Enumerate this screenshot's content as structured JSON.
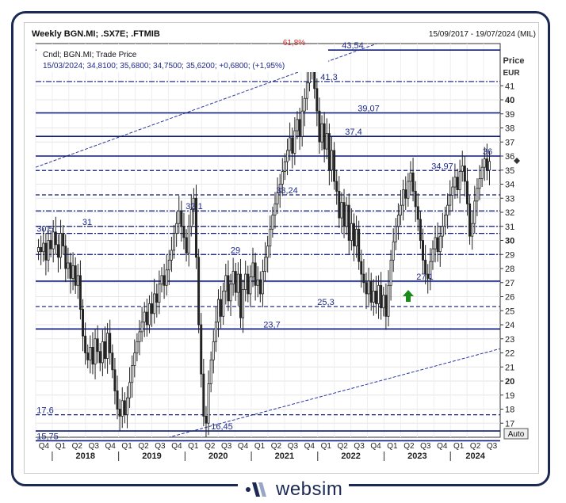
{
  "header": {
    "title": "Weekly BGN.MI; .SX7E; .FTMIB",
    "date_range": "15/09/2017 - 19/07/2024 (MIL)"
  },
  "info": {
    "line1": "Cndl; BGN.MI; Trade Price",
    "line2": "15/03/2024; 34,8100; 35,6800; 34,7500; 35,6200; +0,6800; (+1,95%)"
  },
  "axis": {
    "price_label": "Price",
    "currency_label": "EUR",
    "auto_label": "Auto"
  },
  "brand": {
    "name": "websim"
  },
  "colors": {
    "level_line": "#0c1a7a",
    "candle": "#222222",
    "arrow": "#1a8a1a",
    "trend_line": "#2a3aa0"
  },
  "chart_data": {
    "type": "candlestick",
    "ylim": [
      16,
      44
    ],
    "y_ticks": [
      17,
      18,
      19,
      20,
      21,
      22,
      23,
      24,
      25,
      26,
      27,
      28,
      29,
      30,
      31,
      32,
      33,
      34,
      35,
      36,
      37,
      38,
      39,
      40,
      41
    ],
    "y_bold_ticks": [
      20,
      30,
      40
    ],
    "x_quarter_labels": [
      "Q4",
      "Q1",
      "Q2",
      "Q3",
      "Q4",
      "Q1",
      "Q2",
      "Q3",
      "Q4",
      "Q1",
      "Q2",
      "Q3",
      "Q4",
      "Q1",
      "Q2",
      "Q3",
      "Q4",
      "Q1",
      "Q2",
      "Q3",
      "Q4",
      "Q1",
      "Q2",
      "Q3",
      "Q4",
      "Q1",
      "Q2",
      "Q3"
    ],
    "x_years": [
      "2018",
      "2019",
      "2020",
      "2021",
      "2022",
      "2023",
      "2024"
    ],
    "levels": [
      {
        "value": 43.54,
        "label": "43,54",
        "style": "solid"
      },
      {
        "value": 41.3,
        "label": "41,3",
        "style": "dashdot"
      },
      {
        "value": 39.07,
        "label": "39,07",
        "style": "solid"
      },
      {
        "value": 37.4,
        "label": "37,4",
        "style": "solid"
      },
      {
        "value": 36,
        "label": "36",
        "style": "solid"
      },
      {
        "value": 34.97,
        "label": "34,97",
        "style": "dashed"
      },
      {
        "value": 33.24,
        "label": "33,24",
        "style": "dashed"
      },
      {
        "value": 32.1,
        "label": "32,1",
        "style": "dashdot"
      },
      {
        "value": 31,
        "label": "31",
        "style": "dashdot"
      },
      {
        "value": 30.5,
        "label": "30,5",
        "style": "dashdot"
      },
      {
        "value": 29,
        "label": "29",
        "style": "dashdot"
      },
      {
        "value": 27.1,
        "label": "27,1",
        "style": "solid"
      },
      {
        "value": 25.3,
        "label": "25,3",
        "style": "dashed"
      },
      {
        "value": 23.7,
        "label": "23,7",
        "style": "solid"
      },
      {
        "value": 17.6,
        "label": "17,6",
        "style": "dashed"
      },
      {
        "value": 16.45,
        "label": "16,45",
        "style": "solid"
      },
      {
        "value": 15.75,
        "label": "15,75",
        "style": "solid"
      }
    ],
    "top_label": "61,8%",
    "price_path": [
      29.5,
      29.2,
      29.8,
      28.6,
      30.0,
      29.4,
      30.6,
      29.7,
      28.8,
      30.5,
      29.6,
      28.0,
      28.4,
      27.3,
      28.2,
      26.8,
      27.5,
      25.1,
      23.2,
      22.0,
      21.5,
      22.4,
      21.2,
      23.0,
      22.1,
      21.3,
      22.8,
      21.6,
      23.4,
      22.0,
      20.8,
      19.3,
      18.0,
      17.5,
      18.6,
      17.6,
      18.8,
      19.9,
      21.1,
      22.0,
      22.8,
      23.5,
      24.2,
      24.9,
      24.0,
      25.5,
      24.8,
      26.2,
      25.6,
      26.9,
      27.5,
      26.8,
      27.9,
      28.6,
      29.3,
      30.5,
      31.2,
      32.1,
      31.0,
      30.2,
      29.1,
      31.0,
      32.2,
      33.0,
      28.8,
      24.0,
      20.5,
      17.5,
      17.0,
      19.8,
      21.5,
      22.8,
      24.2,
      25.8,
      24.6,
      26.4,
      27.5,
      25.7,
      26.9,
      27.8,
      26.3,
      27.6,
      24.5,
      26.5,
      27.6,
      26.2,
      27.4,
      28.4,
      26.8,
      27.2,
      26.2,
      27.8,
      28.8,
      29.6,
      30.8,
      31.8,
      32.6,
      33.4,
      34.0,
      34.9,
      35.6,
      36.4,
      37.3,
      36.2,
      37.8,
      38.6,
      37.4,
      39.2,
      40.1,
      41.2,
      43.0,
      42.4,
      40.8,
      39.2,
      37.0,
      38.3,
      36.5,
      37.6,
      35.0,
      36.4,
      34.2,
      33.5,
      31.6,
      32.7,
      31.0,
      32.5,
      30.0,
      31.2,
      29.6,
      30.8,
      28.5,
      27.6,
      27.0,
      26.2,
      27.1,
      25.6,
      26.4,
      25.5,
      26.8,
      25.2,
      26.1,
      24.6,
      26.8,
      28.6,
      29.9,
      31.0,
      31.8,
      32.5,
      33.6,
      33.0,
      34.2,
      34.8,
      33.5,
      32.4,
      31.5,
      30.0,
      28.6,
      27.6,
      27.3,
      28.5,
      29.4,
      30.2,
      29.2,
      30.3,
      31.0,
      31.8,
      32.5,
      33.2,
      33.8,
      34.5,
      33.6,
      34.9,
      35.3,
      34.2,
      32.6,
      30.3,
      31.2,
      32.8,
      33.7,
      34.4,
      35.2,
      35.8,
      35.0,
      35.62
    ]
  }
}
